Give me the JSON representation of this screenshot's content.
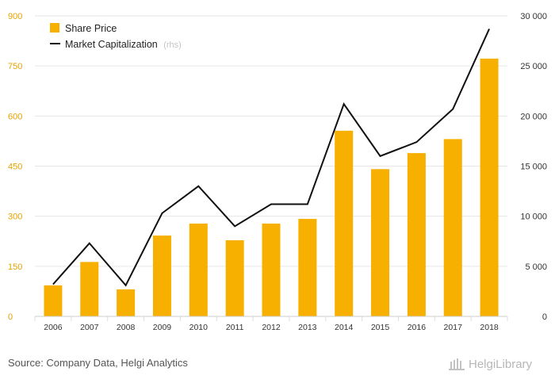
{
  "chart_data": {
    "type": "bar",
    "categories": [
      "2006",
      "2007",
      "2008",
      "2009",
      "2010",
      "2011",
      "2012",
      "2013",
      "2014",
      "2015",
      "2016",
      "2017",
      "2018"
    ],
    "series": [
      {
        "name": "Share Price",
        "type": "bar",
        "axis": "left",
        "color": "#f8b000",
        "values": [
          93,
          163,
          81,
          242,
          278,
          228,
          278,
          292,
          556,
          441,
          489,
          531,
          772
        ]
      },
      {
        "name": "Market Capitalization",
        "name_suffix": "(rhs)",
        "type": "line",
        "axis": "right",
        "color": "#111111",
        "values": [
          3200,
          7300,
          3100,
          10300,
          13000,
          9000,
          11200,
          11200,
          21200,
          16000,
          17400,
          20700,
          28700
        ]
      }
    ],
    "y_left": {
      "ylim": [
        0,
        900
      ],
      "ticks": [
        "0",
        "150",
        "300",
        "450",
        "600",
        "750",
        "900"
      ],
      "tick_color": "#e8a200"
    },
    "y_right": {
      "ylim": [
        0,
        30000
      ],
      "ticks": [
        "0",
        "5 000",
        "10 000",
        "15 000",
        "20 000",
        "25 000",
        "30 000"
      ]
    },
    "grid": true,
    "legend_position": "top-left"
  },
  "footer": {
    "source": "Source: Company Data, Helgi Analytics",
    "logo_text": "HelgiLibrary"
  }
}
